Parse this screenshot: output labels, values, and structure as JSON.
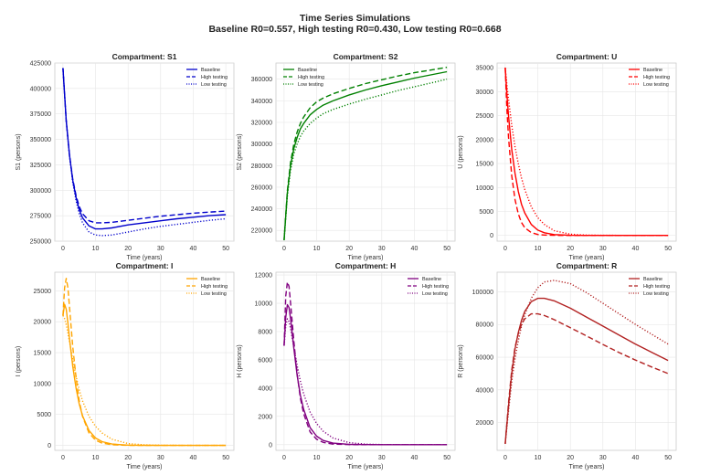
{
  "figure": {
    "title_line1": "Time Series Simulations",
    "title_line2": "Baseline R0=0.557, High testing R0=0.430, Low testing R0=0.668"
  },
  "legend_labels": [
    "Baseline",
    "High testing",
    "Low testing"
  ],
  "chart_data": [
    {
      "type": "line",
      "title": "Compartment: S1",
      "xlabel": "Time (years)",
      "ylabel": "S1 (persons)",
      "color": "#0000cc",
      "xlim": [
        -2.5,
        52.5
      ],
      "ylim": [
        250000,
        425000
      ],
      "xticks": [
        0,
        10,
        20,
        30,
        40,
        50
      ],
      "yticks": [
        250000,
        275000,
        300000,
        325000,
        350000,
        375000,
        400000,
        425000
      ],
      "legend": "top-right",
      "grid": true,
      "series": [
        {
          "name": "Baseline",
          "style": "solid",
          "x": [
            0,
            1,
            2,
            3,
            4,
            5,
            6,
            8,
            10,
            12,
            15,
            20,
            25,
            30,
            35,
            40,
            45,
            50
          ],
          "values": [
            420000,
            368000,
            335000,
            310000,
            293000,
            281000,
            273000,
            265000,
            262000,
            262000,
            263000,
            266000,
            268000,
            270000,
            272000,
            273500,
            275000,
            276000
          ]
        },
        {
          "name": "High testing",
          "style": "dashed",
          "x": [
            0,
            1,
            2,
            3,
            4,
            5,
            6,
            8,
            10,
            12,
            15,
            20,
            25,
            30,
            35,
            40,
            45,
            50
          ],
          "values": [
            420000,
            368000,
            335000,
            311000,
            295000,
            284000,
            277000,
            270000,
            268000,
            268000,
            268500,
            270500,
            272500,
            274500,
            276000,
            277500,
            278500,
            279500
          ]
        },
        {
          "name": "Low testing",
          "style": "dotted",
          "x": [
            0,
            1,
            2,
            3,
            4,
            5,
            6,
            8,
            10,
            12,
            15,
            20,
            25,
            30,
            35,
            40,
            45,
            50
          ],
          "values": [
            420000,
            368000,
            334000,
            308000,
            290000,
            277000,
            268000,
            259000,
            256000,
            255500,
            256000,
            259000,
            262000,
            264500,
            266500,
            268500,
            270500,
            272000
          ]
        }
      ]
    },
    {
      "type": "line",
      "title": "Compartment: S2",
      "xlabel": "Time (years)",
      "ylabel": "S2 (persons)",
      "color": "#008000",
      "xlim": [
        -2.5,
        52.5
      ],
      "ylim": [
        210000,
        375000
      ],
      "xticks": [
        0,
        10,
        20,
        30,
        40,
        50
      ],
      "yticks": [
        220000,
        240000,
        260000,
        280000,
        300000,
        320000,
        340000,
        360000
      ],
      "legend": "top-left",
      "grid": true,
      "series": [
        {
          "name": "Baseline",
          "style": "solid",
          "x": [
            0,
            1,
            2,
            3,
            4,
            5,
            6,
            8,
            10,
            12,
            15,
            20,
            25,
            30,
            35,
            40,
            45,
            50
          ],
          "values": [
            211000,
            255000,
            280000,
            296000,
            306000,
            314000,
            319000,
            327000,
            332000,
            336000,
            340000,
            345500,
            350000,
            354000,
            357500,
            361000,
            364000,
            367000
          ]
        },
        {
          "name": "High testing",
          "style": "dashed",
          "x": [
            0,
            1,
            2,
            3,
            4,
            5,
            6,
            8,
            10,
            12,
            15,
            20,
            25,
            30,
            35,
            40,
            45,
            50
          ],
          "values": [
            211000,
            257000,
            283000,
            300000,
            311000,
            319000,
            325000,
            333500,
            339000,
            342500,
            346500,
            351500,
            356000,
            359500,
            363000,
            366000,
            368500,
            371000
          ]
        },
        {
          "name": "Low testing",
          "style": "dotted",
          "x": [
            0,
            1,
            2,
            3,
            4,
            5,
            6,
            8,
            10,
            12,
            15,
            20,
            25,
            30,
            35,
            40,
            45,
            50
          ],
          "values": [
            211000,
            252000,
            276000,
            291000,
            300000,
            307000,
            312000,
            319000,
            324000,
            328000,
            332000,
            337000,
            341500,
            345500,
            349500,
            353000,
            356500,
            360000
          ]
        }
      ]
    },
    {
      "type": "line",
      "title": "Compartment: U",
      "xlabel": "Time (years)",
      "ylabel": "U (persons)",
      "color": "#ff0000",
      "xlim": [
        -2.5,
        52.5
      ],
      "ylim": [
        -1200,
        36000
      ],
      "xticks": [
        0,
        10,
        20,
        30,
        40,
        50
      ],
      "yticks": [
        0,
        5000,
        10000,
        15000,
        20000,
        25000,
        30000,
        35000
      ],
      "legend": "top-right",
      "grid": true,
      "series": [
        {
          "name": "Baseline",
          "style": "solid",
          "x": [
            0,
            0.5,
            1,
            2,
            3,
            4,
            5,
            6,
            8,
            10,
            12,
            15,
            20,
            25,
            30,
            40,
            50
          ],
          "values": [
            35000,
            29500,
            25000,
            18000,
            13000,
            9200,
            6500,
            4700,
            2300,
            1100,
            550,
            180,
            20,
            5,
            0,
            0,
            0
          ]
        },
        {
          "name": "High testing",
          "style": "dashed",
          "x": [
            0,
            0.5,
            1,
            2,
            3,
            4,
            5,
            6,
            8,
            10,
            12,
            15,
            20,
            25,
            30,
            40,
            50
          ],
          "values": [
            35000,
            26500,
            20500,
            12500,
            7500,
            4500,
            2700,
            1600,
            600,
            200,
            80,
            20,
            0,
            0,
            0,
            0,
            0
          ]
        },
        {
          "name": "Low testing",
          "style": "dotted",
          "x": [
            0,
            0.5,
            1,
            2,
            3,
            4,
            5,
            6,
            8,
            10,
            12,
            15,
            20,
            25,
            30,
            40,
            50
          ],
          "values": [
            35000,
            31500,
            28500,
            23000,
            18500,
            15000,
            12000,
            9600,
            6000,
            3700,
            2300,
            1000,
            250,
            60,
            15,
            0,
            0
          ]
        }
      ]
    },
    {
      "type": "line",
      "title": "Compartment: I",
      "xlabel": "Time (years)",
      "ylabel": "I (persons)",
      "color": "#ffa500",
      "xlim": [
        -2.5,
        52.5
      ],
      "ylim": [
        -800,
        28000
      ],
      "xticks": [
        0,
        10,
        20,
        30,
        40,
        50
      ],
      "yticks": [
        0,
        5000,
        10000,
        15000,
        20000,
        25000
      ],
      "legend": "top-right",
      "grid": true,
      "series": [
        {
          "name": "Baseline",
          "style": "solid",
          "x": [
            0,
            0.5,
            1,
            1.5,
            2,
            3,
            4,
            5,
            6,
            8,
            10,
            12,
            15,
            20,
            25,
            30,
            40,
            50
          ],
          "values": [
            21000,
            22800,
            22000,
            19800,
            17300,
            12800,
            9300,
            6700,
            4800,
            2400,
            1200,
            600,
            220,
            40,
            10,
            0,
            0,
            0
          ]
        },
        {
          "name": "High testing",
          "style": "dashed",
          "x": [
            0,
            0.5,
            1,
            1.5,
            2,
            3,
            4,
            5,
            6,
            8,
            10,
            12,
            15,
            20,
            25,
            30,
            40,
            50
          ],
          "values": [
            21000,
            25500,
            27000,
            25500,
            22500,
            16000,
            11000,
            7200,
            4700,
            2000,
            850,
            360,
            100,
            10,
            0,
            0,
            0,
            0
          ]
        },
        {
          "name": "Low testing",
          "style": "dotted",
          "x": [
            0,
            0.5,
            1,
            1.5,
            2,
            3,
            4,
            5,
            6,
            8,
            10,
            12,
            15,
            20,
            25,
            30,
            40,
            50
          ],
          "values": [
            21000,
            20500,
            19500,
            18200,
            16800,
            13800,
            11200,
            9000,
            7200,
            4700,
            3100,
            2000,
            1000,
            300,
            90,
            25,
            0,
            0
          ]
        }
      ]
    },
    {
      "type": "line",
      "title": "Compartment: H",
      "xlabel": "Time (years)",
      "ylabel": "H (persons)",
      "color": "#800080",
      "xlim": [
        -2.5,
        52.5
      ],
      "ylim": [
        -400,
        12200
      ],
      "xticks": [
        0,
        10,
        20,
        30,
        40,
        50
      ],
      "yticks": [
        0,
        2000,
        4000,
        6000,
        8000,
        10000,
        12000
      ],
      "legend": "top-right",
      "grid": true,
      "series": [
        {
          "name": "Baseline",
          "style": "solid",
          "x": [
            0,
            0.5,
            1,
            1.5,
            2,
            3,
            4,
            5,
            6,
            8,
            10,
            12,
            15,
            20,
            25,
            30,
            40,
            50
          ],
          "values": [
            7000,
            9000,
            9900,
            9700,
            8900,
            6800,
            4900,
            3500,
            2500,
            1200,
            600,
            300,
            110,
            20,
            5,
            0,
            0,
            0
          ]
        },
        {
          "name": "High testing",
          "style": "dashed",
          "x": [
            0,
            0.5,
            1,
            1.5,
            2,
            3,
            4,
            5,
            6,
            8,
            10,
            12,
            15,
            20,
            25,
            30,
            40,
            50
          ],
          "values": [
            7000,
            10500,
            11500,
            11200,
            10000,
            7300,
            5000,
            3300,
            2200,
            900,
            380,
            160,
            40,
            5,
            0,
            0,
            0,
            0
          ]
        },
        {
          "name": "Low testing",
          "style": "dotted",
          "x": [
            0,
            0.5,
            1,
            1.5,
            2,
            3,
            4,
            5,
            6,
            8,
            10,
            12,
            15,
            20,
            25,
            30,
            40,
            50
          ],
          "values": [
            7000,
            8400,
            8900,
            8700,
            8200,
            6900,
            5600,
            4500,
            3600,
            2300,
            1500,
            950,
            470,
            140,
            40,
            10,
            0,
            0
          ]
        }
      ]
    },
    {
      "type": "line",
      "title": "Compartment: R",
      "xlabel": "Time (years)",
      "ylabel": "R (persons)",
      "color": "#b22222",
      "xlim": [
        -2.5,
        52.5
      ],
      "ylim": [
        3000,
        112000
      ],
      "xticks": [
        0,
        10,
        20,
        30,
        40,
        50
      ],
      "yticks": [
        20000,
        40000,
        60000,
        80000,
        100000
      ],
      "legend": "top-right",
      "grid": true,
      "series": [
        {
          "name": "Baseline",
          "style": "solid",
          "x": [
            0,
            1,
            2,
            3,
            4,
            5,
            6,
            8,
            10,
            12,
            15,
            20,
            25,
            30,
            35,
            40,
            45,
            50
          ],
          "values": [
            7000,
            30000,
            50000,
            65000,
            75000,
            82500,
            88000,
            94000,
            96000,
            96000,
            94500,
            90000,
            84500,
            79000,
            73500,
            68000,
            63000,
            58000
          ]
        },
        {
          "name": "High testing",
          "style": "dashed",
          "x": [
            0,
            1,
            2,
            3,
            4,
            5,
            6,
            8,
            10,
            12,
            15,
            20,
            25,
            30,
            35,
            40,
            45,
            50
          ],
          "values": [
            7000,
            32000,
            52000,
            66000,
            74500,
            80000,
            83500,
            86500,
            86500,
            85500,
            83000,
            78000,
            73000,
            67800,
            62800,
            58200,
            54000,
            50000
          ]
        },
        {
          "name": "Low testing",
          "style": "dotted",
          "x": [
            0,
            1,
            2,
            3,
            4,
            5,
            6,
            8,
            10,
            12,
            15,
            20,
            25,
            30,
            35,
            40,
            45,
            50
          ],
          "values": [
            7000,
            27000,
            45000,
            59000,
            70000,
            79000,
            86000,
            96000,
            102500,
            106000,
            107000,
            105000,
            99500,
            93000,
            86500,
            80000,
            74000,
            68000
          ]
        }
      ]
    }
  ]
}
